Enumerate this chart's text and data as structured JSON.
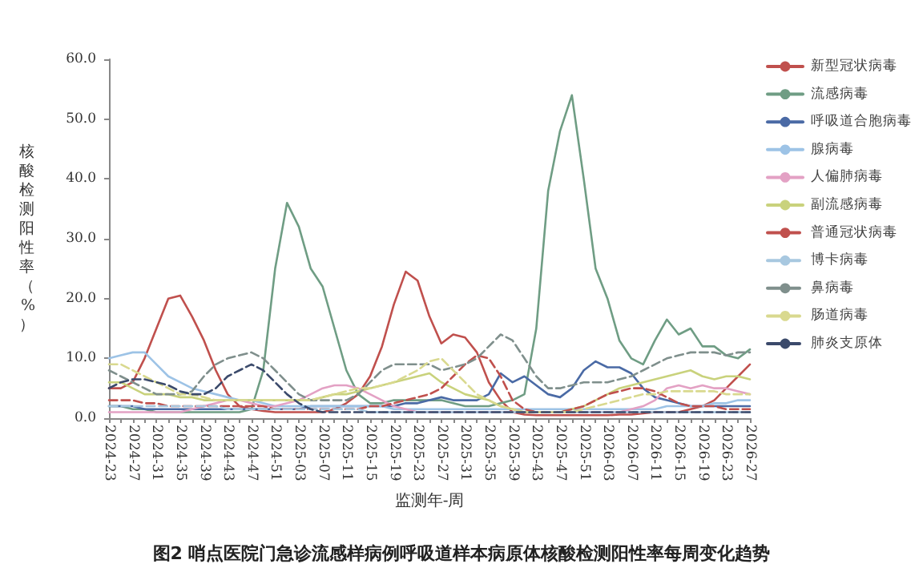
{
  "chart_data": {
    "type": "line",
    "title": "图2 哨点医院门急诊流感样病例呼吸道样本病原体核酸检测阳性率每周变化趋势",
    "xlabel": "监测年-周",
    "ylabel": "核酸检测阳性率（%）",
    "categories": [
      "2024-23",
      null,
      "2024-27",
      null,
      "2024-31",
      null,
      "2024-35",
      null,
      "2024-39",
      null,
      "2024-43",
      null,
      "2024-47",
      null,
      "2024-51",
      null,
      "2025-03",
      null,
      "2025-07",
      null,
      "2025-11",
      null,
      "2025-15",
      null,
      "2025-19",
      null,
      "2025-23",
      null,
      "2025-27",
      null,
      "2025-31",
      null,
      "2025-35",
      null,
      "2025-39",
      null,
      "2025-43",
      null,
      "2025-47",
      null,
      "2025-51",
      null,
      "2026-03",
      null,
      "2026-07",
      null,
      "2026-11",
      null,
      "2026-15",
      null,
      "2026-19",
      null,
      "2026-23",
      null,
      "2026-27"
    ],
    "ylim": [
      0,
      60
    ],
    "yticks": [
      {
        "value": 0,
        "label": "0.0"
      },
      {
        "value": 10,
        "label": "10.0"
      },
      {
        "value": 20,
        "label": "20.0"
      },
      {
        "value": 30,
        "label": "30.0"
      },
      {
        "value": 40,
        "label": "40.0"
      },
      {
        "value": 50,
        "label": "50.0"
      },
      {
        "value": 60,
        "label": "60.0"
      }
    ],
    "legend": "right",
    "marker": "none",
    "grid": false,
    "series": [
      {
        "name": "新型冠状病毒",
        "color": "#c0504d",
        "line_style": "solid",
        "values": [
          5,
          5,
          6,
          10,
          15,
          20,
          20.5,
          17,
          13,
          8,
          4,
          2,
          1.5,
          1.2,
          1,
          1,
          1,
          1,
          1,
          1.5,
          2.5,
          4,
          7,
          12,
          19,
          24.5,
          23,
          17,
          12.5,
          14,
          13.5,
          11,
          6,
          3,
          1,
          0.6,
          0.5,
          0.5,
          0.5,
          0.5,
          0.5,
          0.5,
          0.5,
          0.6,
          0.6,
          0.8,
          1,
          1,
          1,
          1.5,
          2,
          3,
          5,
          7,
          9
        ]
      },
      {
        "name": "流感病毒",
        "color": "#6f9d84",
        "line_style": "solid",
        "values": [
          2,
          2,
          1.5,
          1.5,
          1,
          1,
          1,
          1,
          1,
          1,
          1,
          1,
          1.5,
          8,
          25,
          36,
          32,
          25,
          22,
          15,
          8,
          4,
          2.5,
          2.5,
          3,
          3,
          3,
          3,
          3,
          2.5,
          2,
          2,
          2,
          2.5,
          3,
          4,
          15,
          38,
          48,
          54,
          40,
          25,
          20,
          13,
          10,
          9,
          13,
          16.5,
          14,
          15,
          12,
          12,
          10.5,
          10,
          11.5
        ]
      },
      {
        "name": "呼吸道合胞病毒",
        "color": "#4a6aa5",
        "line_style": "solid",
        "values": [
          2,
          2,
          2,
          1.5,
          1.5,
          1.5,
          1.5,
          1.5,
          1.5,
          1.5,
          1.5,
          1.5,
          1.5,
          1.5,
          1.5,
          1.5,
          1.5,
          2,
          2,
          2,
          2,
          2,
          2,
          2,
          2,
          2.5,
          2.5,
          3,
          3.5,
          3,
          3,
          3,
          4,
          7.5,
          6,
          7,
          5.5,
          4,
          3.5,
          5,
          8,
          9.5,
          8.5,
          8.5,
          7.5,
          5,
          3.5,
          3,
          2.5,
          2,
          2,
          2,
          2,
          2,
          2
        ]
      },
      {
        "name": "腺病毒",
        "color": "#9dc3e6",
        "line_style": "solid",
        "values": [
          10,
          10.5,
          11,
          11,
          9,
          7,
          6,
          5,
          4.5,
          4,
          3.5,
          3,
          3,
          2.5,
          2,
          2,
          2,
          2,
          2,
          2,
          2,
          2,
          2,
          2,
          1.5,
          1.5,
          1.5,
          1.5,
          1.5,
          1.5,
          1.5,
          1.5,
          1.5,
          1.5,
          1.5,
          1.5,
          1.5,
          1.5,
          1.5,
          1.5,
          1.5,
          1.5,
          1.5,
          1.5,
          1.5,
          1.5,
          1.5,
          2,
          2,
          2,
          2,
          2.5,
          2.5,
          3,
          3
        ]
      },
      {
        "name": "人偏肺病毒",
        "color": "#e3a1c4",
        "line_style": "solid",
        "values": [
          1,
          1,
          1,
          1,
          1,
          1,
          1,
          1.5,
          2,
          2.5,
          3,
          3,
          2.5,
          2,
          2,
          2.5,
          3,
          4,
          5,
          5.5,
          5.5,
          5,
          4,
          3,
          2,
          1.5,
          1,
          1,
          1,
          1,
          1,
          1,
          1,
          1,
          1,
          1,
          1,
          1,
          1,
          1,
          1,
          1,
          1,
          1,
          1.5,
          2,
          3,
          5,
          5.5,
          5,
          5.5,
          5,
          5,
          4.5,
          4
        ]
      },
      {
        "name": "副流感病毒",
        "color": "#c9d27c",
        "line_style": "solid",
        "values": [
          6,
          6,
          5,
          4,
          4,
          4,
          3.5,
          3.5,
          3,
          3,
          3,
          3,
          3,
          3,
          3,
          3,
          3,
          3,
          3.5,
          4,
          4,
          4.5,
          5,
          5.5,
          6,
          6.5,
          7,
          7.5,
          6,
          5,
          4,
          3.5,
          3,
          2,
          1.5,
          1,
          1,
          1,
          1,
          1.5,
          2,
          3,
          4,
          5,
          5.5,
          6,
          6.5,
          7,
          7.5,
          8,
          7,
          6.5,
          7,
          7,
          6.5
        ]
      },
      {
        "name": "普通冠状病毒",
        "color": "#c0504d",
        "line_style": "dashed",
        "values": [
          3,
          3,
          3,
          2.5,
          2.5,
          2,
          2,
          2,
          2,
          2,
          2,
          2,
          2,
          2,
          1.5,
          1.5,
          1.5,
          1.5,
          1.5,
          1.5,
          1.5,
          1.5,
          2,
          2,
          2.5,
          3,
          3.5,
          4,
          5,
          7,
          9,
          10.5,
          10,
          7,
          3,
          1.5,
          1,
          1,
          1,
          1.5,
          2,
          3,
          4,
          4.5,
          5,
          5,
          4.5,
          3.5,
          2.5,
          2,
          2,
          2,
          1.5,
          1.5,
          1.5
        ]
      },
      {
        "name": "博卡病毒",
        "color": "#a8c8e0",
        "line_style": "dashed",
        "values": [
          2,
          2,
          2,
          2,
          2,
          2,
          2,
          2,
          2,
          2,
          1.5,
          1.5,
          1.5,
          1.5,
          1.5,
          1.5,
          1.5,
          1.5,
          1.5,
          1.5,
          1.5,
          1.5,
          1,
          1,
          1,
          1,
          1,
          1,
          1,
          1,
          1,
          1,
          1,
          1,
          1,
          1,
          1,
          1,
          1,
          1,
          1,
          1,
          1,
          1,
          1,
          1,
          1,
          1,
          1,
          1,
          1,
          1,
          1,
          1,
          1
        ]
      },
      {
        "name": "鼻病毒",
        "color": "#7f8f8c",
        "line_style": "dashed",
        "values": [
          8,
          7,
          6,
          5,
          4,
          4,
          4,
          4.5,
          7,
          9,
          10,
          10.5,
          11,
          10,
          8,
          6,
          4,
          3,
          3,
          3,
          3,
          4,
          6,
          8,
          9,
          9,
          9,
          9,
          8,
          8.5,
          9,
          10,
          12,
          14,
          13,
          10,
          7,
          5,
          5,
          5.5,
          6,
          6,
          6,
          6.5,
          7,
          8,
          9,
          10,
          10.5,
          11,
          11,
          11,
          10.5,
          11,
          11
        ]
      },
      {
        "name": "肠道病毒",
        "color": "#d9d98f",
        "line_style": "dashed",
        "values": [
          9,
          9,
          8,
          7,
          6,
          5,
          4,
          4,
          3.5,
          3,
          3,
          3,
          3,
          3,
          3,
          3,
          3,
          3,
          3.5,
          4,
          4.5,
          5,
          5,
          5.5,
          6,
          7,
          8,
          9.5,
          10,
          8,
          6,
          4,
          3,
          2,
          1.5,
          1,
          1,
          1,
          1,
          1,
          1.5,
          2,
          2.5,
          3,
          3.5,
          4,
          4,
          4.5,
          4.5,
          4.5,
          4.5,
          4.5,
          4,
          4,
          4
        ]
      },
      {
        "name": "肺炎支原体",
        "color": "#3b4a6b",
        "line_style": "dashed",
        "values": [
          5,
          6,
          6.5,
          6.5,
          6,
          5.5,
          4.5,
          4,
          4,
          5,
          7,
          8,
          9,
          8,
          6,
          4,
          2.5,
          1.5,
          1,
          1,
          1,
          1,
          1,
          1,
          1,
          1,
          1,
          1,
          1,
          1,
          1,
          1,
          1,
          1,
          1,
          1,
          1,
          1,
          1,
          1,
          1,
          1,
          1,
          1,
          1,
          1,
          1,
          1,
          1,
          1,
          1,
          1,
          1,
          1,
          1
        ]
      }
    ]
  }
}
